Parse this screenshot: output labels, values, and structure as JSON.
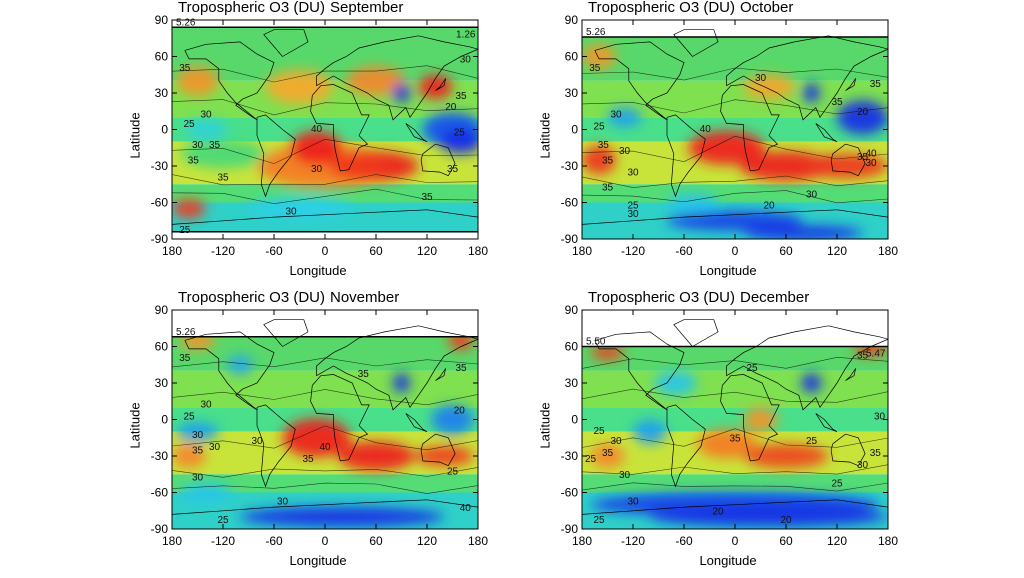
{
  "colors": {
    "low": "#1a2ee6",
    "mid": "#3ee27a",
    "high": "#ee1c1c",
    "nodata": "#ffffff"
  },
  "panels": [
    {
      "title": "Tropospheric O3 (DU)",
      "month": "September",
      "xlabel": "Longitude",
      "ylabel": "Latitude",
      "xticks": [
        "180",
        "-120",
        "-60",
        "0",
        "60",
        "120",
        "180"
      ],
      "yticks": [
        "90",
        "60",
        "30",
        "0",
        "-30",
        "-60",
        "-90"
      ],
      "contour_labels": [
        "35",
        "30",
        "35",
        "25",
        "30",
        "35",
        "40",
        "30",
        "35",
        "30",
        "35",
        "20",
        "25",
        "35",
        "30",
        "35",
        "25"
      ],
      "edge_labels": [
        "5.26",
        "1.26"
      ]
    },
    {
      "title": "Tropospheric O3 (DU)",
      "month": "October",
      "xlabel": "Longitude",
      "ylabel": "Latitude",
      "xticks": [
        "180",
        "-120",
        "-60",
        "0",
        "60",
        "120",
        "180"
      ],
      "yticks": [
        "90",
        "60",
        "30",
        "0",
        "-30",
        "-60",
        "-90"
      ],
      "contour_labels": [
        "35",
        "30",
        "35",
        "30",
        "25",
        "30",
        "35",
        "40",
        "30",
        "30",
        "35",
        "20",
        "40",
        "30",
        "35",
        "30",
        "35",
        "20",
        "25",
        "35"
      ],
      "edge_labels": [
        "5.26"
      ]
    },
    {
      "title": "Tropospheric O3 (DU)",
      "month": "November",
      "xlabel": "Longitude",
      "ylabel": "Latitude",
      "xticks": [
        "180",
        "-120",
        "-60",
        "0",
        "60",
        "120",
        "180"
      ],
      "yticks": [
        "90",
        "60",
        "30",
        "0",
        "-30",
        "-60",
        "-90"
      ],
      "contour_labels": [
        "35",
        "30",
        "35",
        "30",
        "25",
        "30",
        "35",
        "40",
        "30",
        "35",
        "30",
        "35",
        "20",
        "25",
        "30",
        "40",
        "25"
      ],
      "edge_labels": [
        "5.26"
      ]
    },
    {
      "title": "Tropospheric O3 (DU)",
      "month": "December",
      "xlabel": "Longitude",
      "ylabel": "Latitude",
      "xticks": [
        "180",
        "-120",
        "-60",
        "0",
        "60",
        "120",
        "180"
      ],
      "yticks": [
        "90",
        "60",
        "30",
        "0",
        "-30",
        "-60",
        "-90"
      ],
      "contour_labels": [
        "25",
        "35",
        "30",
        "25",
        "35",
        "30",
        "25",
        "30",
        "35",
        "30",
        "25",
        "20",
        "25",
        "35",
        "20",
        "25",
        "30"
      ],
      "edge_labels": [
        "5.50",
        "5.47"
      ]
    }
  ]
}
